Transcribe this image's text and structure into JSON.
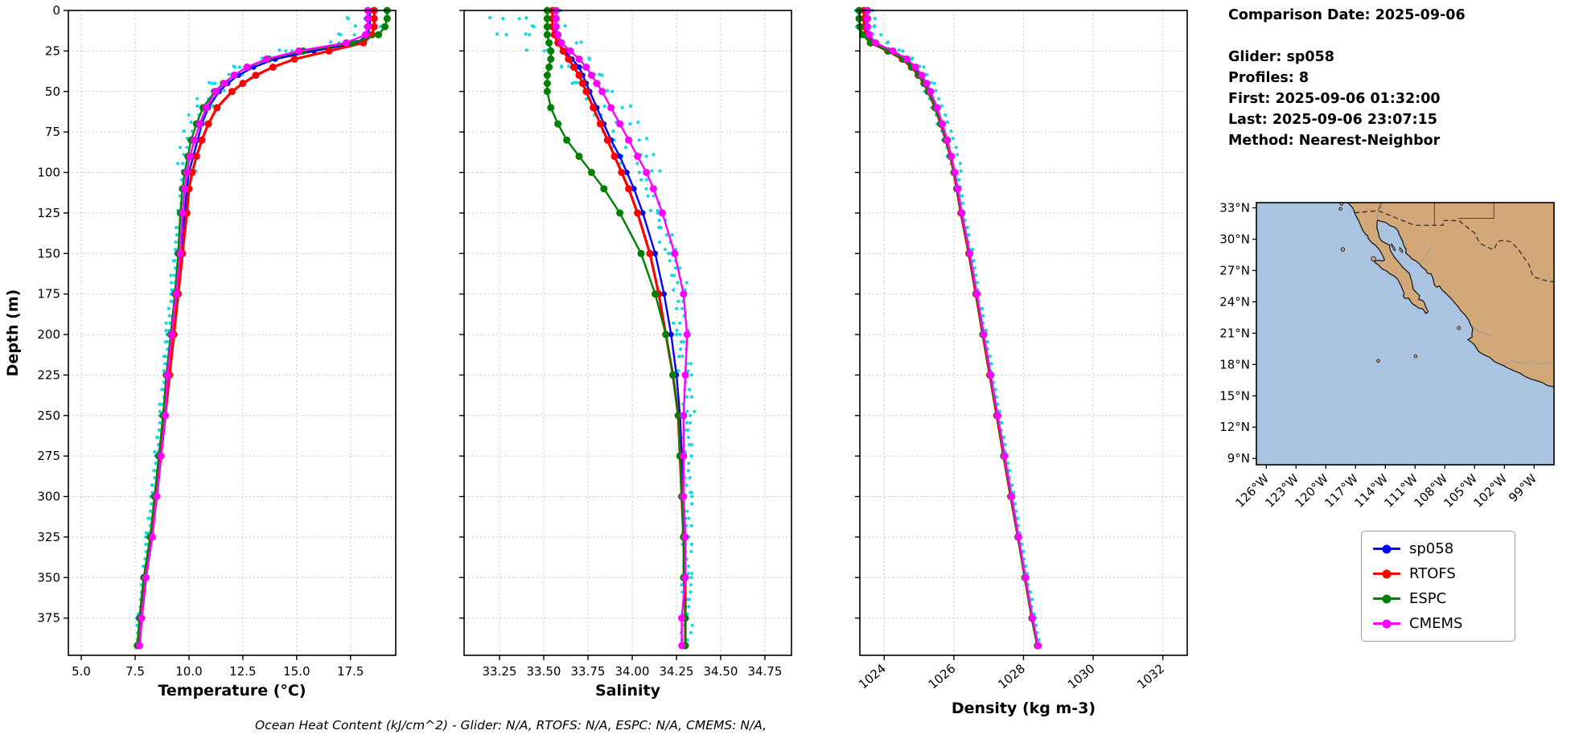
{
  "info": {
    "comparison_date": "Comparison Date: 2025-09-06",
    "glider": "Glider: sp058",
    "profiles": "Profiles: 8",
    "first": "First: 2025-09-06 01:32:00",
    "last": "Last: 2025-09-06 23:07:15",
    "method": "Method: Nearest-Neighbor"
  },
  "caption": {
    "text": "Ocean Heat Content (kJ/cm^2) - Glider: N/A,  RTOFS: N/A,  ESPC: N/A,  CMEMS: N/A,"
  },
  "chart_data": {
    "type": "line",
    "description": "Glider-model comparison vertical ocean profiles: depth vs temperature, salinity and density, plus location map",
    "depth_axis": {
      "label": "Depth (m)",
      "ticks": [
        0,
        25,
        50,
        75,
        100,
        125,
        150,
        175,
        200,
        225,
        250,
        275,
        300,
        325,
        350,
        375
      ],
      "lim": [
        0,
        398
      ]
    },
    "panels": [
      {
        "key": "temperature",
        "xlabel": "Temperature (°C)",
        "ticks": [
          5.0,
          7.5,
          10.0,
          12.5,
          15.0,
          17.5
        ],
        "tick_labels": [
          "5.0",
          "7.5",
          "10.0",
          "12.5",
          "15.0",
          "17.5"
        ],
        "xlim": [
          4.4,
          19.6
        ],
        "rotate_ticks": 0
      },
      {
        "key": "salinity",
        "xlabel": "Salinity",
        "ticks": [
          33.25,
          33.5,
          33.75,
          34.0,
          34.25,
          34.5,
          34.75
        ],
        "tick_labels": [
          "33.25",
          "33.50",
          "33.75",
          "34.00",
          "34.25",
          "34.50",
          "34.75"
        ],
        "xlim": [
          33.05,
          34.9
        ],
        "rotate_ticks": 0
      },
      {
        "key": "density",
        "xlabel": "Density (kg m-3)",
        "ticks": [
          1024,
          1026,
          1028,
          1030,
          1032
        ],
        "tick_labels": [
          "1024",
          "1026",
          "1028",
          "1030",
          "1032"
        ],
        "xlim": [
          1023.3,
          1032.7
        ],
        "rotate_ticks": -40
      }
    ],
    "depths": [
      0,
      5,
      10,
      15,
      20,
      25,
      30,
      35,
      40,
      45,
      50,
      60,
      70,
      80,
      90,
      100,
      110,
      125,
      150,
      175,
      200,
      225,
      250,
      275,
      300,
      325,
      350,
      375,
      392
    ],
    "series": [
      {
        "name": "glider-raw",
        "legend": false,
        "color": "#12d7e4",
        "style": "dots",
        "spread": {
          "temperature": 0.28,
          "salinity": 0.09,
          "density": 0.13
        },
        "values": {
          "temperature": [
            18.3,
            18.2,
            18.1,
            17.8,
            16.8,
            14.9,
            13.4,
            12.5,
            11.9,
            11.4,
            11.1,
            10.6,
            10.3,
            10.1,
            9.9,
            9.8,
            9.7,
            9.6,
            9.4,
            9.2,
            9.0,
            8.9,
            8.7,
            8.5,
            8.3,
            8.1,
            7.9,
            7.7,
            7.6
          ],
          "salinity": [
            33.45,
            33.42,
            33.4,
            33.45,
            33.52,
            33.6,
            33.66,
            33.7,
            33.73,
            33.76,
            33.79,
            33.85,
            33.9,
            33.96,
            34.01,
            34.06,
            34.1,
            34.15,
            34.22,
            34.28,
            34.27,
            34.31,
            34.31,
            34.31,
            34.31,
            34.31,
            34.31,
            34.31,
            34.3
          ],
          "density": [
            1023.45,
            1023.45,
            1023.5,
            1023.6,
            1023.9,
            1024.35,
            1024.7,
            1024.95,
            1025.1,
            1025.25,
            1025.35,
            1025.55,
            1025.7,
            1025.85,
            1025.97,
            1026.07,
            1026.15,
            1026.27,
            1026.5,
            1026.7,
            1026.9,
            1027.1,
            1027.3,
            1027.5,
            1027.7,
            1027.9,
            1028.1,
            1028.3,
            1028.45
          ]
        }
      },
      {
        "name": "sp058",
        "legend": true,
        "color": "#0000ff",
        "style": "line-markers",
        "marker": 3.4,
        "width": 2.4,
        "values": {
          "temperature": [
            18.4,
            18.4,
            18.4,
            18.3,
            17.8,
            15.8,
            14.0,
            13.0,
            12.3,
            11.8,
            11.4,
            10.9,
            10.6,
            10.4,
            10.2,
            10.0,
            9.9,
            9.8,
            9.6,
            9.5,
            9.3,
            9.1,
            8.9,
            8.7,
            8.5,
            8.3,
            8.0,
            7.8,
            7.7
          ],
          "salinity": [
            33.57,
            33.57,
            33.57,
            33.57,
            33.58,
            33.62,
            33.66,
            33.7,
            33.72,
            33.74,
            33.76,
            33.8,
            33.84,
            33.88,
            33.93,
            33.97,
            34.01,
            34.06,
            34.13,
            34.18,
            34.22,
            34.25,
            34.27,
            34.28,
            34.29,
            34.3,
            34.3,
            34.3,
            34.3
          ],
          "density": [
            1023.5,
            1023.5,
            1023.5,
            1023.55,
            1023.7,
            1024.2,
            1024.6,
            1024.85,
            1025.05,
            1025.2,
            1025.3,
            1025.5,
            1025.65,
            1025.8,
            1025.92,
            1026.02,
            1026.1,
            1026.22,
            1026.45,
            1026.65,
            1026.85,
            1027.05,
            1027.25,
            1027.45,
            1027.65,
            1027.85,
            1028.05,
            1028.25,
            1028.4
          ]
        }
      },
      {
        "name": "RTOFS",
        "legend": true,
        "color": "#ff0000",
        "style": "line-markers",
        "marker": 4.5,
        "width": 3.2,
        "values": {
          "temperature": [
            18.6,
            18.6,
            18.6,
            18.5,
            18.1,
            16.5,
            14.9,
            13.9,
            13.1,
            12.5,
            12.0,
            11.3,
            10.9,
            10.6,
            10.35,
            10.15,
            10.0,
            9.9,
            9.7,
            9.5,
            9.3,
            9.1,
            8.9,
            8.7,
            8.5,
            8.25,
            8.0,
            7.8,
            7.7
          ],
          "salinity": [
            33.55,
            33.55,
            33.55,
            33.56,
            33.58,
            33.61,
            33.64,
            33.67,
            33.7,
            33.72,
            33.74,
            33.78,
            33.82,
            33.86,
            33.9,
            33.94,
            33.98,
            34.03,
            34.1,
            34.15,
            34.19,
            34.23,
            34.26,
            34.27,
            34.28,
            34.29,
            34.3,
            34.3,
            34.3
          ],
          "density": [
            1023.42,
            1023.42,
            1023.43,
            1023.48,
            1023.62,
            1024.1,
            1024.52,
            1024.78,
            1024.98,
            1025.14,
            1025.26,
            1025.46,
            1025.62,
            1025.77,
            1025.9,
            1026.0,
            1026.08,
            1026.2,
            1026.43,
            1026.63,
            1026.83,
            1027.03,
            1027.23,
            1027.43,
            1027.63,
            1027.84,
            1028.04,
            1028.24,
            1028.4
          ]
        }
      },
      {
        "name": "ESPC",
        "legend": true,
        "color": "#008000",
        "style": "line-markers",
        "marker": 4.5,
        "width": 2.4,
        "values": {
          "temperature": [
            19.2,
            19.2,
            19.1,
            18.8,
            17.6,
            15.3,
            13.7,
            12.7,
            12.1,
            11.6,
            11.2,
            10.65,
            10.35,
            10.1,
            9.95,
            9.8,
            9.7,
            9.6,
            9.5,
            9.35,
            9.15,
            8.95,
            8.8,
            8.6,
            8.4,
            8.2,
            7.9,
            7.7,
            7.6
          ],
          "salinity": [
            33.52,
            33.52,
            33.52,
            33.52,
            33.53,
            33.54,
            33.54,
            33.53,
            33.52,
            33.52,
            33.52,
            33.54,
            33.58,
            33.63,
            33.7,
            33.77,
            33.84,
            33.93,
            34.05,
            34.13,
            34.19,
            34.23,
            34.26,
            34.27,
            34.28,
            34.29,
            34.29,
            34.3,
            34.3
          ],
          "density": [
            1023.28,
            1023.28,
            1023.3,
            1023.38,
            1023.6,
            1024.12,
            1024.55,
            1024.8,
            1025.0,
            1025.15,
            1025.27,
            1025.47,
            1025.63,
            1025.78,
            1025.91,
            1026.01,
            1026.09,
            1026.21,
            1026.44,
            1026.64,
            1026.84,
            1027.04,
            1027.24,
            1027.44,
            1027.64,
            1027.84,
            1028.04,
            1028.24,
            1028.4
          ]
        }
      },
      {
        "name": "CMEMS",
        "legend": true,
        "color": "#ff00ff",
        "style": "line-markers",
        "marker": 4.5,
        "width": 2.4,
        "values": {
          "temperature": [
            18.3,
            18.3,
            18.3,
            18.2,
            17.3,
            15.1,
            13.6,
            12.7,
            12.1,
            11.65,
            11.25,
            10.8,
            10.5,
            10.25,
            10.05,
            9.9,
            9.8,
            9.7,
            9.6,
            9.4,
            9.2,
            9.0,
            8.9,
            8.7,
            8.5,
            8.3,
            8.0,
            7.8,
            7.7
          ],
          "salinity": [
            33.57,
            33.57,
            33.57,
            33.58,
            33.6,
            33.65,
            33.7,
            33.74,
            33.77,
            33.8,
            33.83,
            33.88,
            33.93,
            33.98,
            34.03,
            34.08,
            34.12,
            34.17,
            34.24,
            34.29,
            34.31,
            34.3,
            34.29,
            34.29,
            34.29,
            34.3,
            34.3,
            34.28,
            34.28
          ],
          "density": [
            1023.52,
            1023.52,
            1023.52,
            1023.57,
            1023.75,
            1024.25,
            1024.65,
            1024.9,
            1025.08,
            1025.22,
            1025.33,
            1025.52,
            1025.67,
            1025.81,
            1025.93,
            1026.03,
            1026.11,
            1026.23,
            1026.46,
            1026.66,
            1026.86,
            1027.06,
            1027.26,
            1027.46,
            1027.66,
            1027.86,
            1028.06,
            1028.26,
            1028.42
          ]
        }
      }
    ],
    "legend": {
      "items": [
        "sp058",
        "RTOFS",
        "ESPC",
        "CMEMS"
      ]
    }
  },
  "map": {
    "ocean_color": "#a9c3e1",
    "land_color": "#d2a878",
    "lat_values": [
      33,
      30,
      27,
      24,
      21,
      18,
      15,
      12,
      9
    ],
    "lat_labels": [
      "33°N",
      "30°N",
      "27°N",
      "24°N",
      "21°N",
      "18°N",
      "15°N",
      "12°N",
      "9°N"
    ],
    "lon_values": [
      -126,
      -123,
      -120,
      -117,
      -114,
      -111,
      -108,
      -105,
      -102,
      -99
    ],
    "lon_labels": [
      "126°W",
      "123°W",
      "120°W",
      "117°W",
      "114°W",
      "111°W",
      "108°W",
      "105°W",
      "102°W",
      "99°W"
    ]
  }
}
